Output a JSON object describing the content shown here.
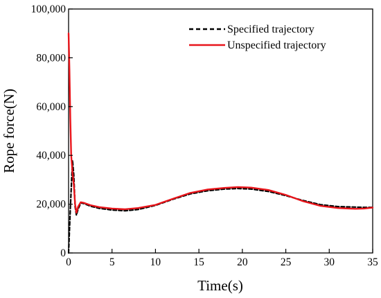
{
  "chart_data": {
    "type": "line",
    "title": "",
    "xlabel": "Time(s)",
    "ylabel": "Rope force(N)",
    "xlim": [
      0,
      35
    ],
    "ylim": [
      0,
      100000
    ],
    "x_ticks": [
      0,
      5,
      10,
      15,
      20,
      25,
      30,
      35
    ],
    "y_ticks": [
      0,
      20000,
      40000,
      60000,
      80000,
      100000
    ],
    "x_tick_labels": [
      "0",
      "5",
      "10",
      "15",
      "20",
      "25",
      "30",
      "35"
    ],
    "y_tick_labels": [
      "0",
      "20,000",
      "40,000",
      "60,000",
      "80,000",
      "100,000"
    ],
    "grid": false,
    "legend_position": "top-right",
    "series": [
      {
        "name": "Specified trajectory",
        "color": "#000000",
        "dash": "dashed",
        "x": [
          0,
          0.2,
          0.45,
          0.6,
          0.75,
          0.9,
          1.1,
          1.4,
          1.8,
          2.5,
          3.5,
          5,
          6.5,
          8,
          10,
          12,
          14,
          16,
          18,
          19.5,
          21,
          23,
          25,
          27,
          29,
          31,
          33,
          34,
          35
        ],
        "y": [
          0,
          18000,
          38000,
          32000,
          19000,
          15500,
          18000,
          20500,
          20200,
          19200,
          18300,
          17600,
          17300,
          17800,
          19500,
          22000,
          24200,
          25500,
          26200,
          26400,
          26200,
          25200,
          23500,
          21500,
          19800,
          19000,
          18800,
          18700,
          18700
        ]
      },
      {
        "name": "Unspecified trajectory",
        "color": "#e8141a",
        "dash": "solid",
        "x": [
          0,
          0.1,
          0.2,
          0.3,
          0.45,
          0.6,
          0.75,
          0.9,
          1.1,
          1.4,
          1.8,
          2.5,
          3.5,
          5,
          6.5,
          8,
          10,
          12,
          14,
          16,
          18,
          19.5,
          21,
          23,
          25,
          27,
          29,
          31,
          33,
          34,
          35
        ],
        "y": [
          90000,
          75000,
          55000,
          40000,
          33000,
          28000,
          20000,
          16500,
          19000,
          20800,
          20500,
          19600,
          18800,
          18200,
          17900,
          18400,
          19700,
          22200,
          24600,
          26000,
          26700,
          27000,
          26800,
          25800,
          23800,
          21200,
          19300,
          18400,
          18100,
          18200,
          18600
        ]
      }
    ]
  }
}
